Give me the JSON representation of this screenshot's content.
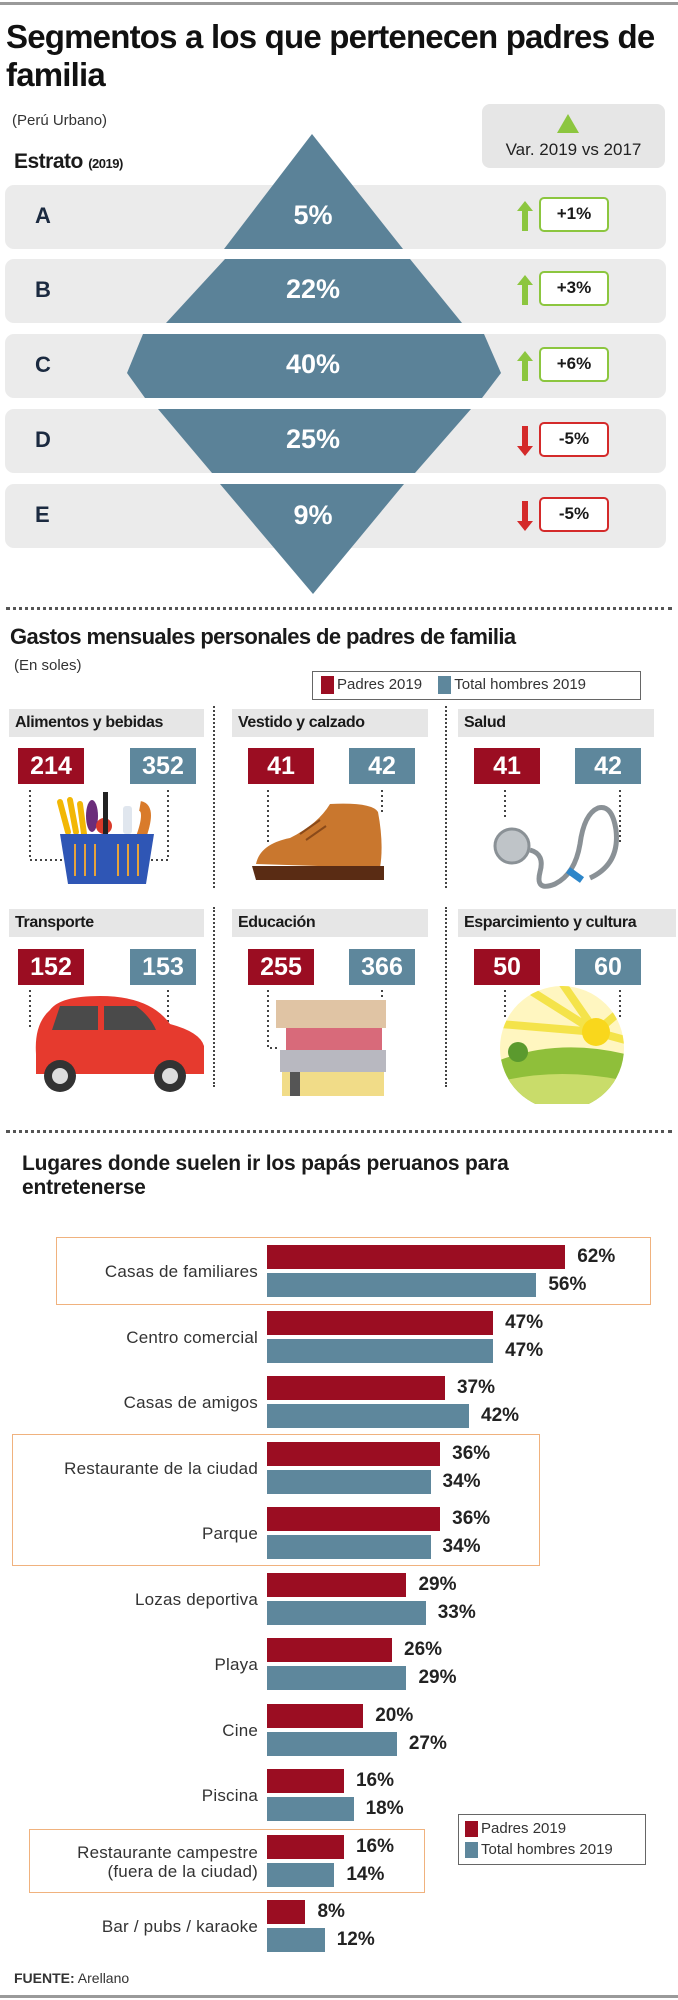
{
  "header": {
    "title": "Segmentos a los que pertenecen padres de familia",
    "subtitle": "(Perú Urbano)",
    "var_label": "Var. 2019 vs 2017",
    "estrato_label": "Estrato",
    "estrato_year": "(2019)"
  },
  "colors": {
    "padres": "#9b0d22",
    "total": "#5e879c",
    "pyramid": "#5b8298",
    "up": "#8cc63f",
    "down": "#d42a2a",
    "highlight": "#f0b27e"
  },
  "strata": [
    {
      "letter": "A",
      "pct": "5%",
      "change": "+1%",
      "dir": "up"
    },
    {
      "letter": "B",
      "pct": "22%",
      "change": "+3%",
      "dir": "up"
    },
    {
      "letter": "C",
      "pct": "40%",
      "change": "+6%",
      "dir": "up"
    },
    {
      "letter": "D",
      "pct": "25%",
      "change": "-5%",
      "dir": "down"
    },
    {
      "letter": "E",
      "pct": "9%",
      "change": "-5%",
      "dir": "down"
    }
  ],
  "spending": {
    "title": "Gastos mensuales personales de padres de familia",
    "unit": "(En soles)",
    "legend": [
      "Padres 2019",
      "Total hombres 2019"
    ],
    "items": [
      {
        "category": "Alimentos y bebidas",
        "padres": "214",
        "total": "352",
        "icon": "grocery-basket"
      },
      {
        "category": "Vestido y calzado",
        "padres": "41",
        "total": "42",
        "icon": "shoe"
      },
      {
        "category": "Salud",
        "padres": "41",
        "total": "42",
        "icon": "stethoscope"
      },
      {
        "category": "Transporte",
        "padres": "152",
        "total": "153",
        "icon": "car"
      },
      {
        "category": "Educación",
        "padres": "255",
        "total": "366",
        "icon": "books"
      },
      {
        "category": "Esparcimiento y cultura",
        "padres": "50",
        "total": "60",
        "icon": "sunny-landscape"
      }
    ]
  },
  "chart_data": {
    "type": "bar",
    "orientation": "horizontal",
    "title": "Lugares donde suelen ir los papás peruanos para entretenerse",
    "legend": "bottom-right",
    "categories": [
      "Casas de familiares",
      "Centro comercial",
      "Casas de amigos",
      "Restaurante de la ciudad",
      "Parque",
      "Lozas deportiva",
      "Playa",
      "Cine",
      "Piscina",
      "Restaurante campestre (fuera de la ciudad)",
      "Bar / pubs / karaoke"
    ],
    "series": [
      {
        "name": "Padres 2019",
        "values": [
          62,
          47,
          37,
          36,
          36,
          29,
          26,
          20,
          16,
          16,
          8
        ]
      },
      {
        "name": "Total hombres 2019",
        "values": [
          56,
          47,
          42,
          34,
          34,
          33,
          29,
          27,
          18,
          14,
          12
        ]
      }
    ],
    "highlighted": [
      "Casas de familiares",
      "Restaurante de la ciudad",
      "Parque",
      "Restaurante campestre (fuera de la ciudad)"
    ],
    "unit": "%"
  },
  "footer": {
    "source_label": "FUENTE:",
    "source": "Arellano"
  }
}
